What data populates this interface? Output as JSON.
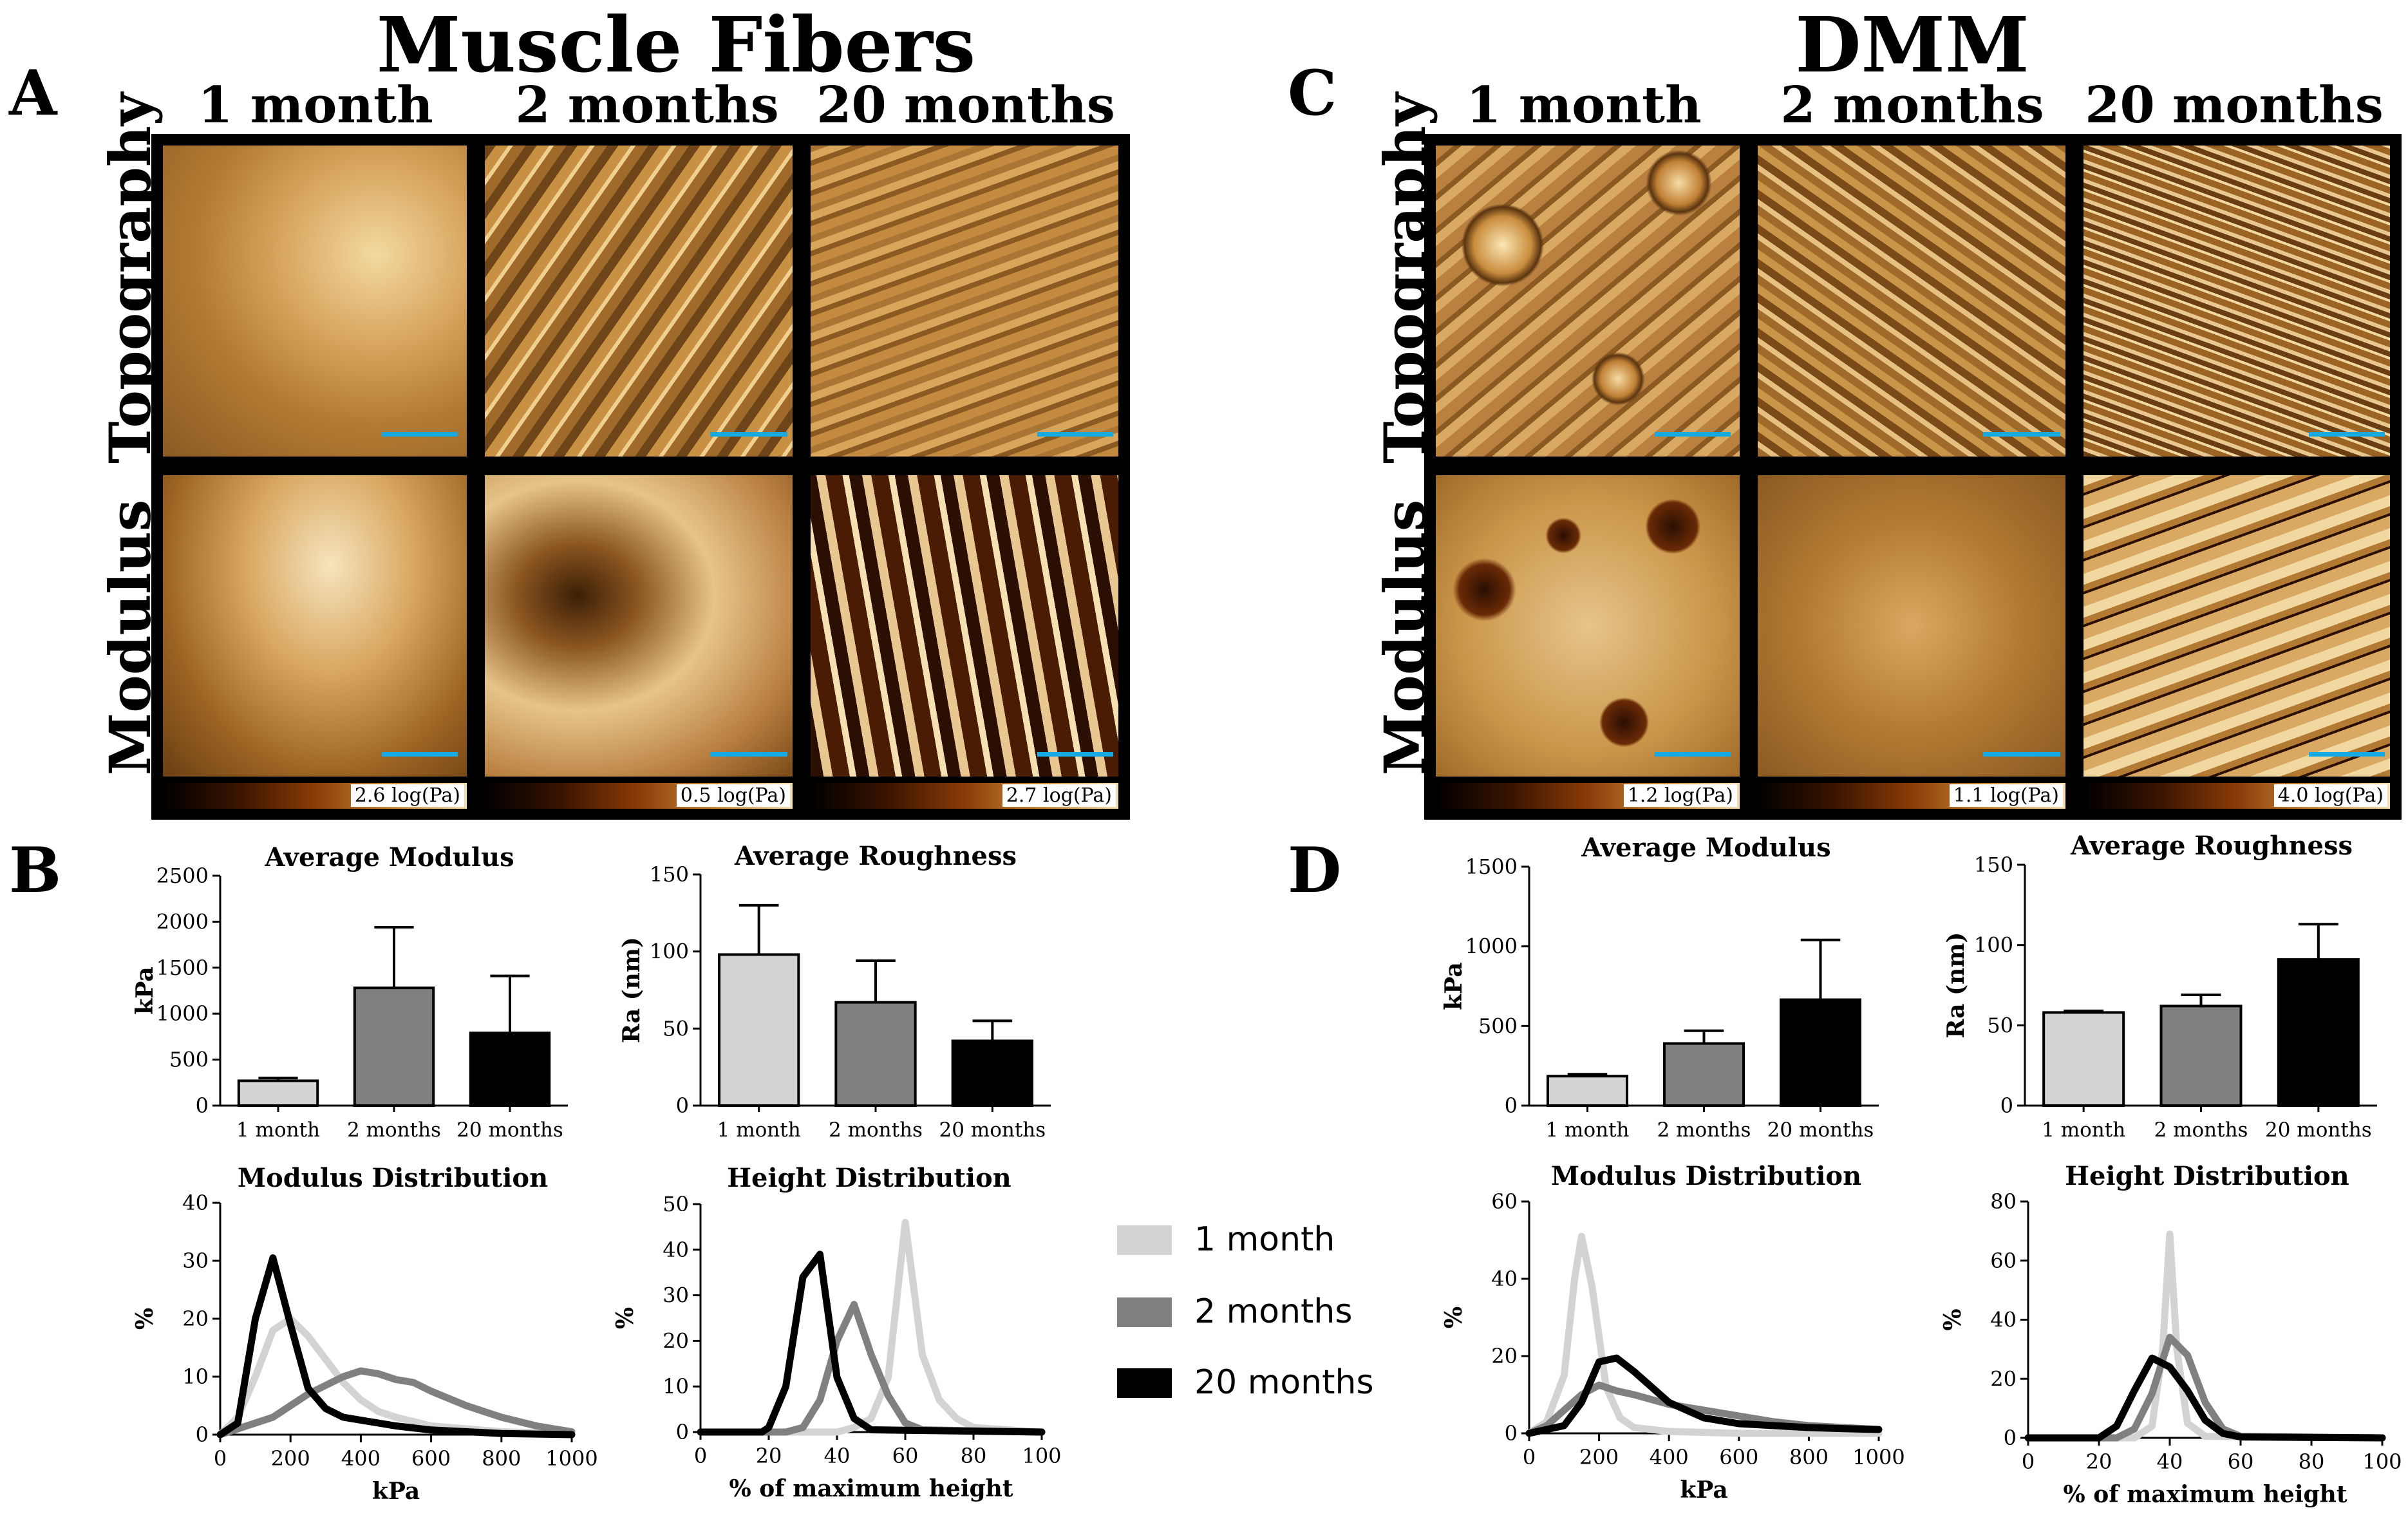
{
  "panels": {
    "A": {
      "letter": "A",
      "title": "Muscle Fibers",
      "columns": [
        "1 month",
        "2 months",
        "20 months"
      ],
      "rows": [
        "Topography",
        "Modulus"
      ],
      "colorbars": [
        "2.6 log(Pa)",
        "0.5 log(Pa)",
        "2.7 log(Pa)"
      ]
    },
    "B": {
      "letter": "B"
    },
    "C": {
      "letter": "C",
      "title": "DMM",
      "columns": [
        "1 month",
        "2 months",
        "20 months"
      ],
      "rows": [
        "Topography",
        "Modulus"
      ],
      "colorbars": [
        "1.2 log(Pa)",
        "1.1 log(Pa)",
        "4.0 log(Pa)"
      ]
    },
    "D": {
      "letter": "D"
    }
  },
  "colors": {
    "one_month": "#d3d3d3",
    "two_months": "#808080",
    "twenty_months": "#000000",
    "scale_bar": "#19a8e0"
  },
  "legend": [
    {
      "label": "1 month",
      "color": "#d3d3d3"
    },
    {
      "label": "2 months",
      "color": "#808080"
    },
    {
      "label": "20 months",
      "color": "#000000"
    }
  ],
  "chart_data": [
    {
      "id": "B-modulus",
      "type": "bar",
      "title": "Average Modulus",
      "xlabel": "",
      "ylabel": "kPa",
      "categories": [
        "1 month",
        "2 months",
        "20 months"
      ],
      "values": [
        270,
        1280,
        790
      ],
      "errors": [
        30,
        660,
        620
      ],
      "ylim": [
        0,
        2500
      ],
      "yticks": [
        0,
        500,
        1000,
        1500,
        2000,
        2500
      ]
    },
    {
      "id": "B-roughness",
      "type": "bar",
      "title": "Average Roughness",
      "xlabel": "",
      "ylabel": "Ra (nm)",
      "categories": [
        "1 month",
        "2 months",
        "20 months"
      ],
      "values": [
        98,
        67,
        42
      ],
      "errors": [
        32,
        27,
        13
      ],
      "ylim": [
        0,
        150
      ],
      "yticks": [
        0,
        50,
        100,
        150
      ]
    },
    {
      "id": "B-modulus-dist",
      "type": "line",
      "title": "Modulus Distribution",
      "xlabel": "kPa",
      "ylabel": "%",
      "xlim": [
        0,
        1000
      ],
      "ylim": [
        0,
        40
      ],
      "xticks": [
        0,
        200,
        400,
        600,
        800,
        1000
      ],
      "yticks": [
        0,
        10,
        20,
        30,
        40
      ],
      "series": [
        {
          "name": "1 month",
          "x": [
            0,
            50,
            100,
            150,
            200,
            250,
            300,
            350,
            400,
            450,
            500,
            600,
            800,
            1000
          ],
          "y": [
            0,
            3,
            10,
            18,
            20,
            17,
            13,
            9,
            6,
            4,
            3,
            1.5,
            0.5,
            0.2
          ]
        },
        {
          "name": "2 months",
          "x": [
            0,
            100,
            150,
            200,
            250,
            300,
            350,
            400,
            450,
            500,
            550,
            600,
            700,
            800,
            900,
            1000
          ],
          "y": [
            0,
            2,
            3,
            5,
            7,
            8.5,
            10,
            11,
            10.5,
            9.5,
            9,
            7.5,
            5,
            3,
            1.5,
            0.5
          ]
        },
        {
          "name": "20 months",
          "x": [
            0,
            50,
            100,
            150,
            200,
            250,
            300,
            350,
            400,
            500,
            600,
            800,
            1000
          ],
          "y": [
            0,
            2,
            20,
            30.5,
            19,
            8,
            4.5,
            3,
            2.5,
            1.5,
            0.8,
            0.2,
            0
          ]
        }
      ]
    },
    {
      "id": "B-height-dist",
      "type": "line",
      "title": "Height Distribution",
      "xlabel": "% of maximum height",
      "ylabel": "%",
      "xlim": [
        0,
        100
      ],
      "ylim": [
        0,
        50
      ],
      "xticks": [
        0,
        20,
        40,
        60,
        80,
        100
      ],
      "yticks": [
        0,
        10,
        20,
        30,
        40,
        50
      ],
      "series": [
        {
          "name": "1 month",
          "x": [
            0,
            40,
            45,
            50,
            55,
            60,
            65,
            70,
            75,
            80,
            100
          ],
          "y": [
            0,
            0,
            1,
            3,
            12,
            46,
            17,
            7,
            3,
            1,
            0
          ]
        },
        {
          "name": "2 months",
          "x": [
            0,
            25,
            30,
            35,
            40,
            45,
            50,
            55,
            60,
            65,
            100
          ],
          "y": [
            0,
            0,
            1,
            7,
            20,
            28,
            17,
            8,
            2,
            0.5,
            0
          ]
        },
        {
          "name": "20 months",
          "x": [
            0,
            18,
            20,
            25,
            30,
            35,
            40,
            45,
            50,
            100
          ],
          "y": [
            0,
            0,
            1,
            10,
            34,
            39,
            12,
            3,
            0.5,
            0
          ]
        }
      ]
    },
    {
      "id": "D-modulus",
      "type": "bar",
      "title": "Average Modulus",
      "xlabel": "",
      "ylabel": "kPa",
      "categories": [
        "1 month",
        "2 months",
        "20 months"
      ],
      "values": [
        185,
        390,
        665
      ],
      "errors": [
        12,
        80,
        375
      ],
      "ylim": [
        0,
        1500
      ],
      "yticks": [
        0,
        500,
        1000,
        1500
      ]
    },
    {
      "id": "D-roughness",
      "type": "bar",
      "title": "Average Roughness",
      "xlabel": "",
      "ylabel": "Ra (nm)",
      "categories": [
        "1 month",
        "2 months",
        "20 months"
      ],
      "values": [
        58,
        62,
        91
      ],
      "errors": [
        1,
        7,
        22
      ],
      "ylim": [
        0,
        150
      ],
      "yticks": [
        0,
        50,
        100,
        150
      ]
    },
    {
      "id": "D-modulus-dist",
      "type": "line",
      "title": "Modulus Distribution",
      "xlabel": "kPa",
      "ylabel": "%",
      "xlim": [
        0,
        1000
      ],
      "ylim": [
        0,
        60
      ],
      "xticks": [
        0,
        200,
        400,
        600,
        800,
        1000
      ],
      "yticks": [
        0,
        20,
        40,
        60
      ],
      "series": [
        {
          "name": "1 month",
          "x": [
            0,
            50,
            100,
            130,
            150,
            180,
            220,
            260,
            300,
            400,
            600,
            1000
          ],
          "y": [
            0,
            3,
            15,
            40,
            51,
            38,
            12,
            4,
            1.5,
            0.5,
            0,
            0
          ]
        },
        {
          "name": "2 months",
          "x": [
            0,
            50,
            100,
            150,
            200,
            250,
            300,
            400,
            500,
            600,
            700,
            800,
            1000
          ],
          "y": [
            0,
            2,
            6,
            10,
            12.5,
            11,
            10,
            7.5,
            6,
            4.5,
            3,
            2,
            1
          ]
        },
        {
          "name": "20 months",
          "x": [
            0,
            100,
            150,
            200,
            250,
            300,
            350,
            400,
            500,
            600,
            700,
            800,
            900,
            1000
          ],
          "y": [
            0,
            2,
            8,
            18.5,
            19.5,
            16,
            12,
            8,
            4,
            2.5,
            2,
            1.5,
            1.2,
            1
          ]
        }
      ]
    },
    {
      "id": "D-height-dist",
      "type": "line",
      "title": "Height Distribution",
      "xlabel": "% of maximum height",
      "ylabel": "%",
      "xlim": [
        0,
        100
      ],
      "ylim": [
        0,
        80
      ],
      "xticks": [
        0,
        20,
        40,
        60,
        80,
        100
      ],
      "yticks": [
        0,
        20,
        40,
        60,
        80
      ],
      "series": [
        {
          "name": "1 month",
          "x": [
            0,
            30,
            35,
            38,
            40,
            42,
            45,
            50,
            100
          ],
          "y": [
            0,
            0,
            4,
            30,
            69,
            30,
            5,
            0.5,
            0
          ]
        },
        {
          "name": "2 months",
          "x": [
            0,
            25,
            30,
            35,
            40,
            45,
            50,
            55,
            60,
            100
          ],
          "y": [
            0,
            0,
            3,
            15,
            34,
            28,
            12,
            3,
            0.5,
            0
          ]
        },
        {
          "name": "20 months",
          "x": [
            0,
            20,
            25,
            30,
            35,
            40,
            45,
            50,
            55,
            60,
            100
          ],
          "y": [
            0,
            0,
            4,
            16,
            27,
            24,
            16,
            6,
            1.5,
            0.3,
            0
          ]
        }
      ]
    }
  ]
}
